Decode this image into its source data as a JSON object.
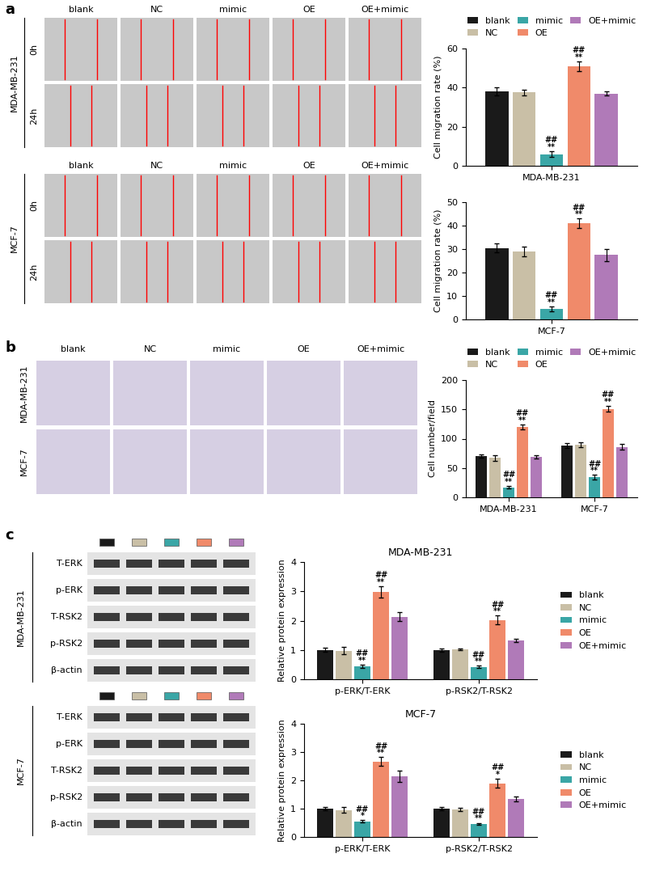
{
  "chart_data": [
    {
      "type": "bar",
      "ylabel": "Cell migration rate (%)",
      "categories": [
        "MDA-MB-231"
      ],
      "ylim": [
        0,
        60
      ],
      "yticks": [
        0,
        20,
        40,
        60
      ],
      "legend": "upper center",
      "series": [
        {
          "name": "blank",
          "color": "#1a1a1a",
          "values": [
            38
          ],
          "errors": [
            2
          ],
          "significance": [
            null
          ]
        },
        {
          "name": "NC",
          "color": "#c9bfa6",
          "values": [
            37.5
          ],
          "errors": [
            1.5
          ],
          "significance": [
            null
          ]
        },
        {
          "name": "mimic",
          "color": "#3aa6a6",
          "values": [
            6
          ],
          "errors": [
            1.5
          ],
          "significance": [
            [
              "##",
              "**"
            ]
          ]
        },
        {
          "name": "OE",
          "color": "#f08a6a",
          "values": [
            51
          ],
          "errors": [
            2.5
          ],
          "significance": [
            [
              "##",
              "**"
            ]
          ]
        },
        {
          "name": "OE+mimic",
          "color": "#b07ab8",
          "values": [
            37
          ],
          "errors": [
            1
          ],
          "significance": [
            null
          ]
        }
      ]
    },
    {
      "type": "bar",
      "ylabel": "Cell migration rate (%)",
      "categories": [
        "MCF-7"
      ],
      "ylim": [
        0,
        50
      ],
      "yticks": [
        0,
        10,
        20,
        30,
        40,
        50
      ],
      "series": [
        {
          "name": "blank",
          "color": "#1a1a1a",
          "values": [
            30.5
          ],
          "errors": [
            2
          ],
          "significance": [
            null
          ]
        },
        {
          "name": "NC",
          "color": "#c9bfa6",
          "values": [
            29
          ],
          "errors": [
            2
          ],
          "significance": [
            null
          ]
        },
        {
          "name": "mimic",
          "color": "#3aa6a6",
          "values": [
            4.5
          ],
          "errors": [
            1
          ],
          "significance": [
            [
              "##",
              "**"
            ]
          ]
        },
        {
          "name": "OE",
          "color": "#f08a6a",
          "values": [
            41
          ],
          "errors": [
            2
          ],
          "significance": [
            [
              "##",
              "**"
            ]
          ]
        },
        {
          "name": "OE+mimic",
          "color": "#b07ab8",
          "values": [
            27.5
          ],
          "errors": [
            2.5
          ],
          "significance": [
            null
          ]
        }
      ]
    },
    {
      "type": "bar",
      "ylabel": "Cell number/field",
      "categories": [
        "MDA-MB-231",
        "MCF-7"
      ],
      "ylim": [
        0,
        200
      ],
      "yticks": [
        0,
        50,
        100,
        150,
        200
      ],
      "legend": "upper center",
      "series": [
        {
          "name": "blank",
          "color": "#1a1a1a",
          "values": [
            70,
            88
          ],
          "errors": [
            3,
            4
          ],
          "significance": [
            null,
            null
          ]
        },
        {
          "name": "NC",
          "color": "#c9bfa6",
          "values": [
            67,
            90
          ],
          "errors": [
            5,
            4
          ],
          "significance": [
            null,
            null
          ]
        },
        {
          "name": "mimic",
          "color": "#3aa6a6",
          "values": [
            17,
            34
          ],
          "errors": [
            2,
            4
          ],
          "significance": [
            [
              "##",
              "**"
            ],
            [
              "##",
              "**"
            ]
          ]
        },
        {
          "name": "OE",
          "color": "#f08a6a",
          "values": [
            120,
            151
          ],
          "errors": [
            4,
            5
          ],
          "significance": [
            [
              "##",
              "**"
            ],
            [
              "##",
              "**"
            ]
          ]
        },
        {
          "name": "OE+mimic",
          "color": "#b07ab8",
          "values": [
            69,
            86
          ],
          "errors": [
            3,
            5
          ],
          "significance": [
            null,
            null
          ]
        }
      ]
    },
    {
      "type": "bar",
      "title": "MDA-MB-231",
      "ylabel": "Relative protein expression",
      "categories": [
        "p-ERK/T-ERK",
        "p-RSK2/T-RSK2"
      ],
      "ylim": [
        0,
        4
      ],
      "yticks": [
        0,
        1,
        2,
        3,
        4
      ],
      "legend": "center right",
      "series": [
        {
          "name": "blank",
          "color": "#1a1a1a",
          "values": [
            1,
            1
          ],
          "errors": [
            0.07,
            0.06
          ],
          "significance": [
            null,
            null
          ]
        },
        {
          "name": "NC",
          "color": "#c9bfa6",
          "values": [
            0.97,
            1.02
          ],
          "errors": [
            0.12,
            0.04
          ],
          "significance": [
            null,
            null
          ]
        },
        {
          "name": "mimic",
          "color": "#3aa6a6",
          "values": [
            0.45,
            0.42
          ],
          "errors": [
            0.05,
            0.04
          ],
          "significance": [
            [
              "##",
              "**"
            ],
            [
              "##",
              "**"
            ]
          ]
        },
        {
          "name": "OE",
          "color": "#f08a6a",
          "values": [
            2.98,
            2.02
          ],
          "errors": [
            0.2,
            0.15
          ],
          "significance": [
            [
              "##",
              "**"
            ],
            [
              "##",
              "**"
            ]
          ]
        },
        {
          "name": "OE+mimic",
          "color": "#b07ab8",
          "values": [
            2.13,
            1.32
          ],
          "errors": [
            0.15,
            0.06
          ],
          "significance": [
            null,
            null
          ]
        }
      ]
    },
    {
      "type": "bar",
      "title": "MCF-7",
      "ylabel": "Relative protein expression",
      "categories": [
        "p-ERK/T-ERK",
        "p-RSK2/T-RSK2"
      ],
      "ylim": [
        0,
        4
      ],
      "yticks": [
        0,
        1,
        2,
        3,
        4
      ],
      "legend": "center right",
      "series": [
        {
          "name": "blank",
          "color": "#1a1a1a",
          "values": [
            1,
            1
          ],
          "errors": [
            0.06,
            0.06
          ],
          "significance": [
            null,
            null
          ]
        },
        {
          "name": "NC",
          "color": "#c9bfa6",
          "values": [
            0.95,
            0.97
          ],
          "errors": [
            0.1,
            0.05
          ],
          "significance": [
            null,
            null
          ]
        },
        {
          "name": "mimic",
          "color": "#3aa6a6",
          "values": [
            0.55,
            0.47
          ],
          "errors": [
            0.04,
            0.03
          ],
          "significance": [
            [
              "##",
              "*"
            ],
            [
              "##",
              "**"
            ]
          ]
        },
        {
          "name": "OE",
          "color": "#f08a6a",
          "values": [
            2.67,
            1.9
          ],
          "errors": [
            0.15,
            0.15
          ],
          "significance": [
            [
              "##",
              "**"
            ],
            [
              "##",
              "*"
            ]
          ]
        },
        {
          "name": "OE+mimic",
          "color": "#b07ab8",
          "values": [
            2.13,
            1.35
          ],
          "errors": [
            0.2,
            0.08
          ],
          "significance": [
            null,
            null
          ]
        }
      ]
    }
  ],
  "images": {
    "panel_labels": [
      "a",
      "b",
      "c"
    ],
    "groups": [
      "blank",
      "NC",
      "mimic",
      "OE",
      "OE+mimic"
    ],
    "migration": {
      "cell_lines": [
        "MDA-MB-231",
        "MCF-7"
      ],
      "times": [
        "0h",
        "24h"
      ]
    },
    "invasion": {
      "cell_lines": [
        "MDA-MB-231",
        "MCF-7"
      ]
    },
    "western_blot": {
      "cell_lines": [
        "MDA-MB-231",
        "MCF-7"
      ],
      "proteins": [
        "T-ERK",
        "p-ERK",
        "T-RSK2",
        "p-RSK2",
        "β-actin"
      ]
    }
  }
}
